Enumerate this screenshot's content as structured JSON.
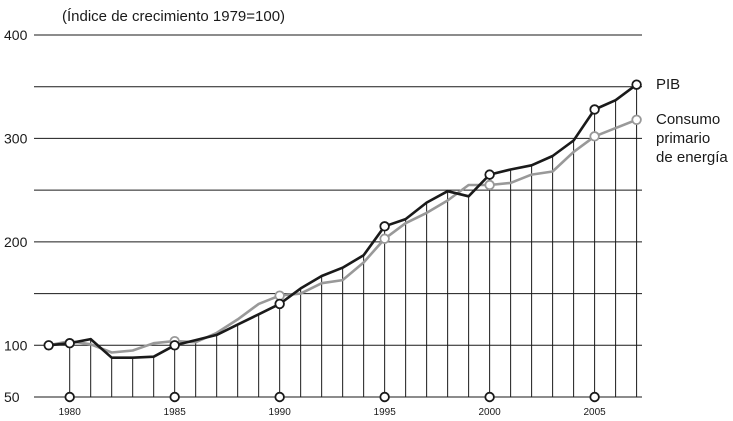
{
  "chart_data": {
    "type": "line",
    "subtitle": "(Índice de crecimiento 1979=100)",
    "title": "",
    "xlabel": "",
    "ylabel": "",
    "x": [
      1979,
      1980,
      1981,
      1982,
      1983,
      1984,
      1985,
      1986,
      1987,
      1988,
      1989,
      1990,
      1991,
      1992,
      1993,
      1994,
      1995,
      1996,
      1997,
      1998,
      1999,
      2000,
      2001,
      2002,
      2003,
      2004,
      2005,
      2006,
      2007
    ],
    "xlim": [
      1978.3,
      2007.4
    ],
    "x_tick_labels": [
      "1980",
      "1985",
      "1990",
      "1995",
      "2000",
      "2005"
    ],
    "x_tick_values": [
      1980,
      1985,
      1990,
      1995,
      2000,
      2005
    ],
    "y_tick_labels": [
      "50",
      "100",
      "200",
      "300",
      "400"
    ],
    "y_tick_values": [
      50,
      100,
      200,
      300,
      400
    ],
    "gridlines": [
      50,
      100,
      150,
      200,
      250,
      300,
      350,
      400
    ],
    "ylim": [
      50,
      400
    ],
    "grid": true,
    "series": [
      {
        "name": "PIB",
        "label_lines": [
          "PIB"
        ],
        "color": "#1a1a1a",
        "values": [
          100,
          102,
          106,
          88,
          88,
          89,
          100,
          105,
          110,
          120,
          130,
          140,
          155,
          167,
          175,
          187,
          215,
          222,
          238,
          249,
          244,
          265,
          270,
          274,
          283,
          298,
          328,
          337,
          352
        ],
        "markers": [
          1979,
          1980,
          1985,
          1990,
          1995,
          2000,
          2005,
          2007
        ]
      },
      {
        "name": "Consumo primario de energía",
        "label_lines": [
          "Consumo",
          "primario",
          "de energía"
        ],
        "color": "#999999",
        "values": [
          100,
          104,
          101,
          93,
          95,
          102,
          104,
          103,
          112,
          125,
          140,
          148,
          150,
          160,
          163,
          180,
          203,
          218,
          228,
          240,
          255,
          255,
          257,
          265,
          268,
          287,
          302,
          310,
          318
        ],
        "markers": [
          1985,
          1990,
          1995,
          2000,
          2005,
          2007
        ]
      }
    ],
    "axis_markers": [
      1980,
      1985,
      1990,
      1995,
      2000,
      2005
    ]
  }
}
